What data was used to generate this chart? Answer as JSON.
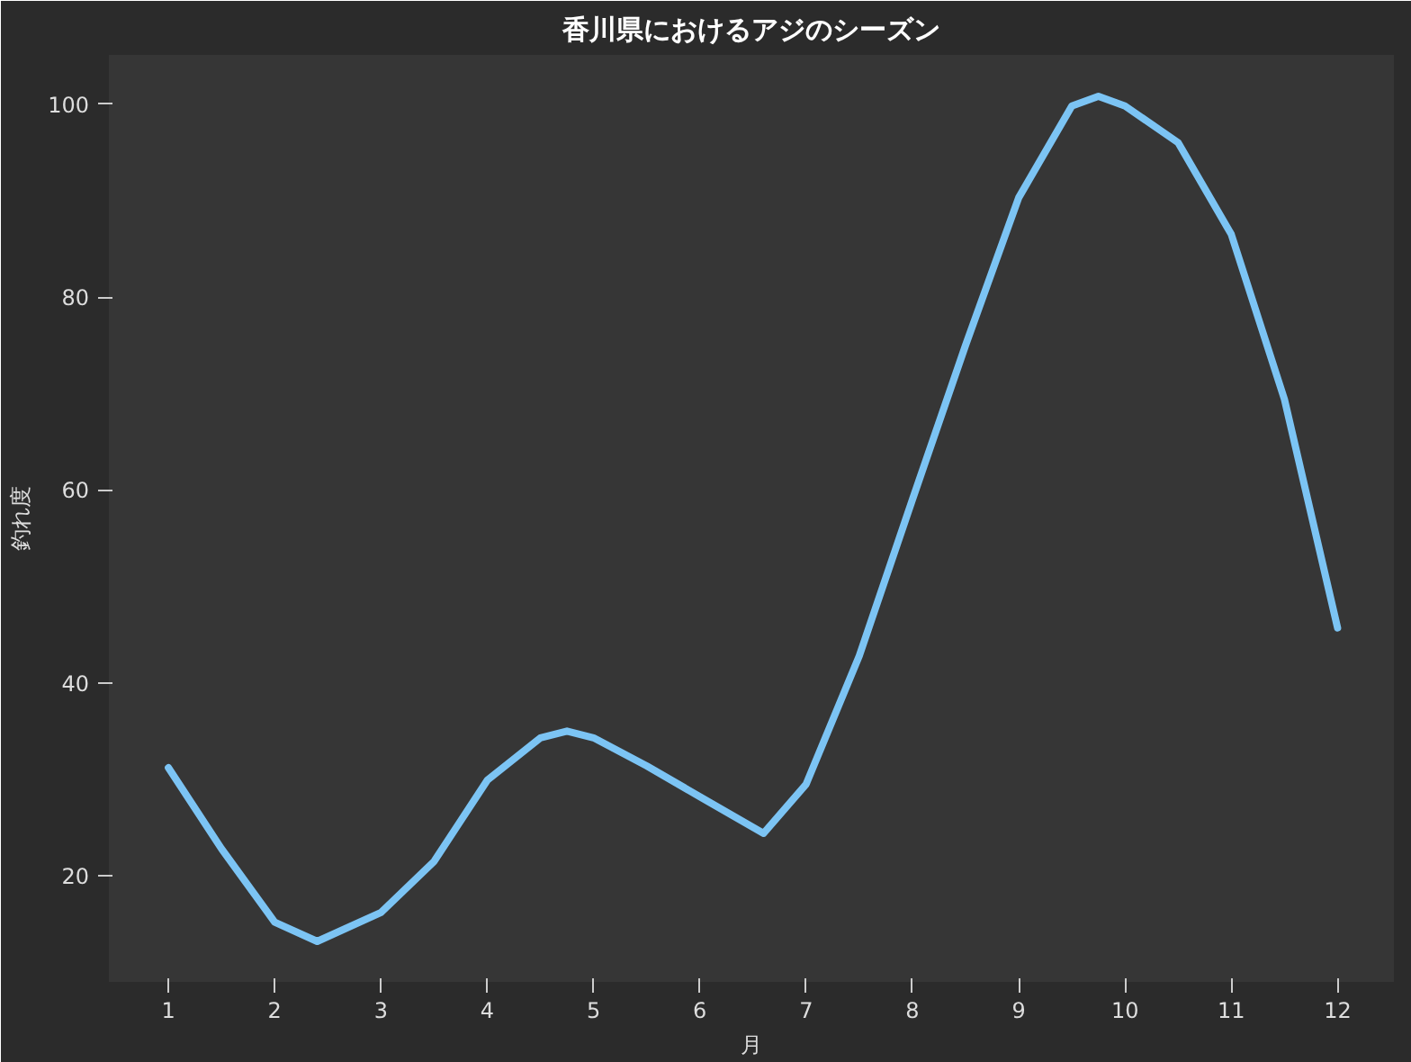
{
  "chart_data": {
    "type": "line",
    "title": "香川県におけるアジのシーズン",
    "xlabel": "月",
    "ylabel": "釣れ度",
    "x": [
      1,
      1.5,
      2,
      2.4,
      3,
      3.5,
      4,
      4.5,
      4.75,
      5,
      5.5,
      6,
      6.6,
      7,
      7.5,
      8,
      8.5,
      9,
      9.5,
      9.75,
      10,
      10.5,
      11,
      11.5,
      12
    ],
    "series": [
      {
        "color": "#7cc4f4",
        "values": [
          31.2,
          22.8,
          15.2,
          13.2,
          16.2,
          21.5,
          29.9,
          34.3,
          35,
          34.3,
          31.4,
          28.2,
          24.4,
          29.5,
          42.8,
          59,
          75,
          90.3,
          99.8,
          100.8,
          99.8,
          96,
          86.5,
          69.4,
          45.7
        ]
      }
    ],
    "xlim": [
      0.44,
      12.53
    ],
    "ylim": [
      9,
      105.1
    ],
    "xticks": [
      1,
      2,
      3,
      4,
      5,
      6,
      7,
      8,
      9,
      10,
      11,
      12
    ],
    "yticks": [
      20,
      40,
      60,
      80,
      100
    ],
    "grid": false,
    "marker": "none",
    "line_style": "solid"
  }
}
